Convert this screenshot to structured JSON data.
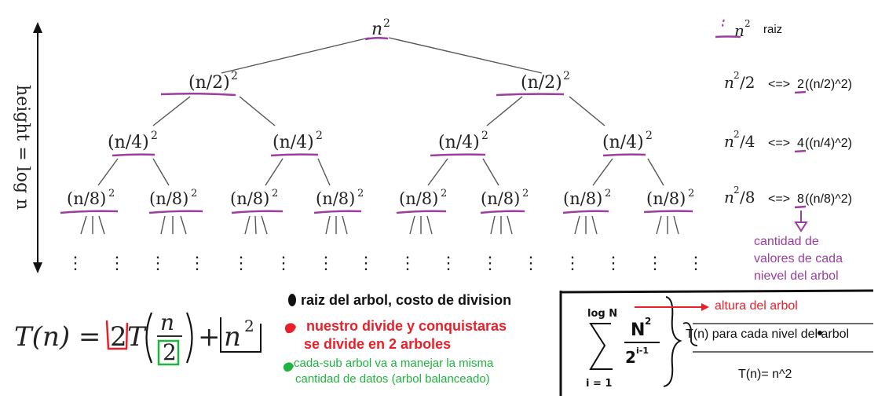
{
  "tree": {
    "root": "n",
    "sq": "2",
    "levels": [
      {
        "label": "(n/2)",
        "count": 2
      },
      {
        "label": "(n/4)",
        "count": 4
      },
      {
        "label": "(n/8)",
        "count": 8
      }
    ],
    "dots": "⋮",
    "height_label": "height = log n"
  },
  "right_column": {
    "legend_n": "n",
    "legend_sq": "2",
    "legend_text": "raiz",
    "rows": [
      {
        "expr_base": "n",
        "expr_sq": "2",
        "expr_div": "/2",
        "arrow": "<=>",
        "factor": "2",
        "rest": "((n/2)^2)"
      },
      {
        "expr_base": "n",
        "expr_sq": "2",
        "expr_div": "/4",
        "arrow": "<=>",
        "factor": "4",
        "rest": "((n/4)^2)"
      },
      {
        "expr_base": "n",
        "expr_sq": "2",
        "expr_div": "/8",
        "arrow": "<=>",
        "factor": "8",
        "rest": "((n/8)^2)"
      }
    ],
    "note_lines": [
      "cantidad de",
      "valores de cada",
      "nievel del arbol"
    ]
  },
  "formula": {
    "lhs": "T(n) =",
    "coef": "2",
    "t": "T",
    "num": "n",
    "den": "2",
    "plus": "+",
    "nsq_base": "n",
    "nsq_exp": "2"
  },
  "annotations": {
    "black_text": "raiz del arbol, costo de division",
    "red_lines": [
      "nuestro divide y conquistaras",
      "se divide en 2 arboles"
    ],
    "green_lines": [
      "cada-sub arbol va a manejar la misma",
      "cantidad de datos (arbol balanceado)"
    ]
  },
  "summation": {
    "upper": "log N",
    "lower": "i = 1",
    "num": "N",
    "num_exp": "2",
    "den": "2",
    "den_exp": "i-1",
    "altura": "altura del arbol",
    "each_level": "T(n) para cada nivel del arbol",
    "result": "T(n)= n^2"
  },
  "colors": {
    "purple": "#9b3ea0",
    "red": "#e8202a",
    "green": "#1fb33f",
    "black": "#111111",
    "gray_edge": "#555555"
  }
}
